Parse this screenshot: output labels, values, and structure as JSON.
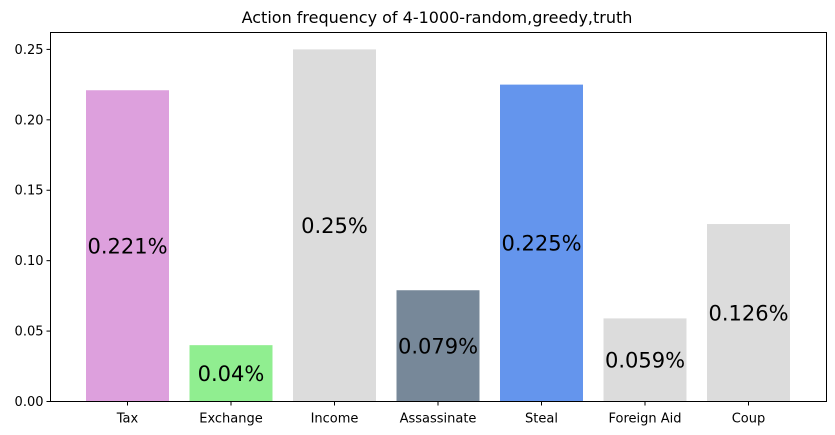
{
  "chart_data": {
    "type": "bar",
    "title": "Action frequency of 4-1000-random,greedy,truth",
    "xlabel": "",
    "ylabel": "",
    "categories": [
      "Tax",
      "Exchange",
      "Income",
      "Assassinate",
      "Steal",
      "Foreign Aid",
      "Coup"
    ],
    "values": [
      0.221,
      0.04,
      0.25,
      0.079,
      0.225,
      0.059,
      0.126
    ],
    "data_labels": [
      "0.221%",
      "0.04%",
      "0.25%",
      "0.079%",
      "0.225%",
      "0.059%",
      "0.126%"
    ],
    "colors": [
      "#dda0dd",
      "#90ee90",
      "#dcdcdc",
      "#778899",
      "#6495ed",
      "#dcdcdc",
      "#dcdcdc"
    ],
    "ylim": [
      0,
      0.262
    ],
    "yticks": [
      0.0,
      0.05,
      0.1,
      0.15,
      0.2,
      0.25
    ],
    "ytick_labels": [
      "0.00",
      "0.05",
      "0.10",
      "0.15",
      "0.20",
      "0.25"
    ],
    "grid": false,
    "legend": "none"
  }
}
